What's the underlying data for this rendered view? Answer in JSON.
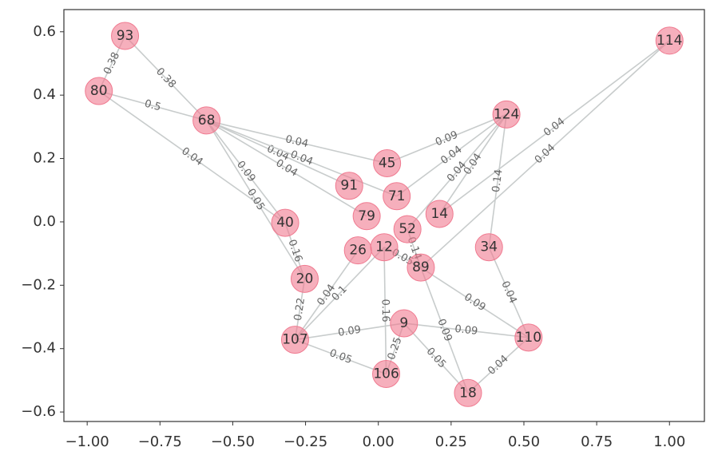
{
  "chart_data": {
    "type": "network",
    "xlim": [
      -1.08,
      1.12
    ],
    "ylim": [
      -0.63,
      0.67
    ],
    "xticks": [
      {
        "value": -1,
        "label": "−1.00"
      },
      {
        "value": -0.75,
        "label": "−0.75"
      },
      {
        "value": -0.5,
        "label": "−0.50"
      },
      {
        "value": -0.25,
        "label": "−0.25"
      },
      {
        "value": 0,
        "label": "0.00"
      },
      {
        "value": 0.25,
        "label": "0.25"
      },
      {
        "value": 0.5,
        "label": "0.50"
      },
      {
        "value": 0.75,
        "label": "0.75"
      },
      {
        "value": 1,
        "label": "1.00"
      }
    ],
    "yticks": [
      {
        "value": -0.6,
        "label": "−0.6"
      },
      {
        "value": -0.4,
        "label": "−0.4"
      },
      {
        "value": -0.2,
        "label": "−0.2"
      },
      {
        "value": 0,
        "label": "0.0"
      },
      0.2,
      0.4,
      0.6
    ],
    "node_color": "#f07a90",
    "edge_color": "#c8cccc",
    "nodes": [
      {
        "label": "93",
        "x": -0.87,
        "y": 0.587
      },
      {
        "label": "80",
        "x": -0.96,
        "y": 0.413
      },
      {
        "label": "68",
        "x": -0.59,
        "y": 0.32
      },
      {
        "label": "114",
        "x": 1.0,
        "y": 0.572
      },
      {
        "label": "124",
        "x": 0.44,
        "y": 0.339
      },
      {
        "label": "45",
        "x": 0.03,
        "y": 0.185
      },
      {
        "label": "91",
        "x": -0.1,
        "y": 0.114
      },
      {
        "label": "71",
        "x": 0.063,
        "y": 0.081
      },
      {
        "label": "79",
        "x": -0.04,
        "y": 0.018
      },
      {
        "label": "14",
        "x": 0.21,
        "y": 0.025
      },
      {
        "label": "52",
        "x": 0.1,
        "y": -0.023
      },
      {
        "label": "40",
        "x": -0.32,
        "y": -0.003
      },
      {
        "label": "34",
        "x": 0.38,
        "y": -0.08
      },
      {
        "label": "26",
        "x": -0.07,
        "y": -0.09
      },
      {
        "label": "12",
        "x": 0.02,
        "y": -0.08
      },
      {
        "label": "89",
        "x": 0.146,
        "y": -0.144
      },
      {
        "label": "20",
        "x": -0.253,
        "y": -0.18
      },
      {
        "label": "9",
        "x": 0.088,
        "y": -0.32
      },
      {
        "label": "110",
        "x": 0.516,
        "y": -0.365
      },
      {
        "label": "107",
        "x": -0.286,
        "y": -0.372
      },
      {
        "label": "106",
        "x": 0.027,
        "y": -0.48
      },
      {
        "label": "18",
        "x": 0.308,
        "y": -0.54
      }
    ],
    "edges": [
      {
        "source": "93",
        "target": "80",
        "weight": 0.38
      },
      {
        "source": "93",
        "target": "68",
        "weight": 0.38
      },
      {
        "source": "80",
        "target": "68",
        "weight": 0.5
      },
      {
        "source": "80",
        "target": "40",
        "weight": 0.04
      },
      {
        "source": "68",
        "target": "45",
        "weight": 0.04
      },
      {
        "source": "68",
        "target": "91",
        "weight": 0.04
      },
      {
        "source": "68",
        "target": "71",
        "weight": 0.04
      },
      {
        "source": "68",
        "target": "79",
        "weight": 0.04
      },
      {
        "source": "68",
        "target": "40",
        "weight": 0.09
      },
      {
        "source": "68",
        "target": "20",
        "weight": 0.05
      },
      {
        "source": "114",
        "target": "14",
        "weight": 0.04
      },
      {
        "source": "114",
        "target": "89",
        "weight": 0.04
      },
      {
        "source": "124",
        "target": "45",
        "weight": 0.09
      },
      {
        "source": "124",
        "target": "71",
        "weight": 0.04
      },
      {
        "source": "124",
        "target": "14",
        "weight": 0.04
      },
      {
        "source": "124",
        "target": "52",
        "weight": 0.04
      },
      {
        "source": "124",
        "target": "34",
        "weight": 0.14
      },
      {
        "source": "40",
        "target": "20",
        "weight": 0.16
      },
      {
        "source": "20",
        "target": "107",
        "weight": 0.22
      },
      {
        "source": "107",
        "target": "106",
        "weight": 0.05
      },
      {
        "source": "107",
        "target": "9",
        "weight": 0.09
      },
      {
        "source": "107",
        "target": "12",
        "weight": 0.1
      },
      {
        "source": "26",
        "target": "107",
        "weight": 0.04
      },
      {
        "source": "106",
        "target": "9",
        "weight": 0.25
      },
      {
        "source": "12",
        "target": "106",
        "weight": 0.16
      },
      {
        "source": "18",
        "target": "110",
        "weight": 0.04
      },
      {
        "source": "110",
        "target": "34",
        "weight": 0.04
      },
      {
        "source": "110",
        "target": "89",
        "weight": 0.09
      },
      {
        "source": "110",
        "target": "9",
        "weight": 0.09
      },
      {
        "source": "18",
        "target": "9",
        "weight": 0.05
      },
      {
        "source": "18",
        "target": "89",
        "weight": 0.09
      },
      {
        "source": "12",
        "target": "89",
        "weight": 0.05
      },
      {
        "source": "52",
        "target": "89",
        "weight": 0.14
      }
    ]
  }
}
